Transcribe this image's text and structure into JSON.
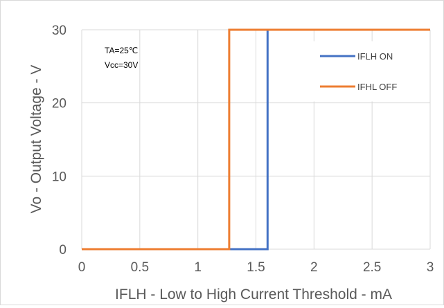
{
  "chart_data": {
    "type": "line",
    "title": "",
    "xlabel": "IFLH -  Low to High Current Threshold - mA",
    "ylabel": "Vo - Output Voltage - V",
    "xlim": [
      0,
      3
    ],
    "ylim": [
      0,
      30
    ],
    "x_ticks": [
      "0",
      "0.5",
      "1",
      "1.5",
      "2",
      "2.5",
      "3"
    ],
    "y_ticks": [
      "0",
      "10",
      "20",
      "30"
    ],
    "grid": true,
    "legend_position": "top-right",
    "annotations": [
      "TA=25℃",
      "Vcc=30V"
    ],
    "series": [
      {
        "name": "IFLH ON",
        "color": "#4472c4",
        "x": [
          0,
          1.6,
          1.6,
          3
        ],
        "y": [
          0,
          0,
          30,
          30
        ]
      },
      {
        "name": "IFHL OFF",
        "color": "#ed7d31",
        "x": [
          0,
          1.27,
          1.27,
          3
        ],
        "y": [
          0,
          0,
          30,
          30
        ]
      }
    ]
  }
}
